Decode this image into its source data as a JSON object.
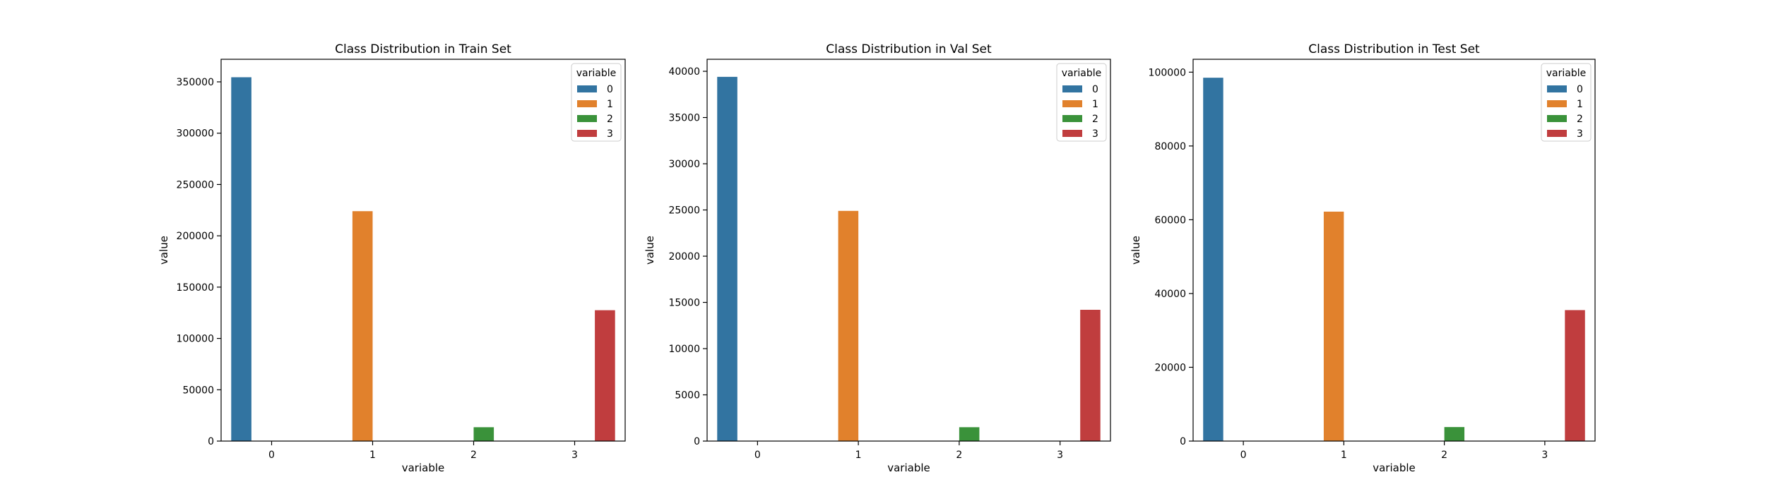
{
  "chart_data": [
    {
      "type": "bar",
      "title": "Class Distribution in Train Set",
      "xlabel": "variable",
      "ylabel": "value",
      "categories": [
        "0",
        "1",
        "2",
        "3"
      ],
      "ylim": [
        0,
        372000
      ],
      "yticks": [
        0,
        50000,
        100000,
        150000,
        200000,
        250000,
        300000,
        350000
      ],
      "legend": {
        "title": "variable",
        "placement": "top-right",
        "entries": [
          "0",
          "1",
          "2",
          "3"
        ]
      },
      "series": [
        {
          "name": "0",
          "values": [
            354500,
            0,
            0,
            0
          ]
        },
        {
          "name": "1",
          "values": [
            0,
            224000,
            0,
            0
          ]
        },
        {
          "name": "2",
          "values": [
            0,
            0,
            13500,
            0
          ]
        },
        {
          "name": "3",
          "values": [
            0,
            0,
            0,
            127500
          ]
        }
      ],
      "grid": false
    },
    {
      "type": "bar",
      "title": "Class Distribution in Val Set",
      "xlabel": "variable",
      "ylabel": "value",
      "categories": [
        "0",
        "1",
        "2",
        "3"
      ],
      "ylim": [
        0,
        41300
      ],
      "yticks": [
        0,
        5000,
        10000,
        15000,
        20000,
        25000,
        30000,
        35000,
        40000
      ],
      "legend": {
        "title": "variable",
        "placement": "top-right",
        "entries": [
          "0",
          "1",
          "2",
          "3"
        ]
      },
      "series": [
        {
          "name": "0",
          "values": [
            39400,
            0,
            0,
            0
          ]
        },
        {
          "name": "1",
          "values": [
            0,
            24900,
            0,
            0
          ]
        },
        {
          "name": "2",
          "values": [
            0,
            0,
            1500,
            0
          ]
        },
        {
          "name": "3",
          "values": [
            0,
            0,
            0,
            14200
          ]
        }
      ],
      "grid": false
    },
    {
      "type": "bar",
      "title": "Class Distribution in Test Set",
      "xlabel": "variable",
      "ylabel": "value",
      "categories": [
        "0",
        "1",
        "2",
        "3"
      ],
      "ylim": [
        0,
        103500
      ],
      "yticks": [
        0,
        20000,
        40000,
        60000,
        80000,
        100000
      ],
      "legend": {
        "title": "variable",
        "placement": "top-right",
        "entries": [
          "0",
          "1",
          "2",
          "3"
        ]
      },
      "series": [
        {
          "name": "0",
          "values": [
            98500,
            0,
            0,
            0
          ]
        },
        {
          "name": "1",
          "values": [
            0,
            62200,
            0,
            0
          ]
        },
        {
          "name": "2",
          "values": [
            0,
            0,
            3800,
            0
          ]
        },
        {
          "name": "3",
          "values": [
            0,
            0,
            0,
            35500
          ]
        }
      ],
      "grid": false
    }
  ],
  "colors": {
    "series": [
      "#3274a1",
      "#e1812c",
      "#3a923a",
      "#c03d3e"
    ],
    "axis": "#000000",
    "legend_border": "#cccccc"
  }
}
